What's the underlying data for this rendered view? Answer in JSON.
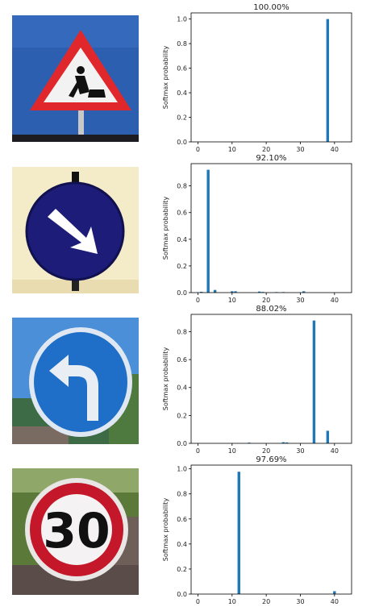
{
  "chart_data": [
    {
      "type": "bar",
      "title": "100.00%",
      "ylabel": "Softmax probability",
      "xlabel": "",
      "xlim": [
        -2,
        45
      ],
      "ylim": [
        0,
        1.05
      ],
      "xticks": [
        0,
        10,
        20,
        30,
        40
      ],
      "yticks": [
        0.0,
        0.2,
        0.4,
        0.6,
        0.8,
        1.0
      ],
      "x": [
        38
      ],
      "values": [
        1.0
      ]
    },
    {
      "type": "bar",
      "title": "92.10%",
      "ylabel": "Softmax probability",
      "xlabel": "",
      "xlim": [
        -2,
        45
      ],
      "ylim": [
        0,
        0.967
      ],
      "xticks": [
        0,
        10,
        20,
        30,
        40
      ],
      "yticks": [
        0.0,
        0.2,
        0.4,
        0.6,
        0.8
      ],
      "x": [
        1,
        3,
        5,
        10,
        11,
        18,
        19,
        23,
        25,
        31
      ],
      "values": [
        0.006,
        0.921,
        0.02,
        0.01,
        0.01,
        0.008,
        0.005,
        0.004,
        0.004,
        0.01
      ]
    },
    {
      "type": "bar",
      "title": "88.02%",
      "ylabel": "Softmax probability",
      "xlabel": "",
      "xlim": [
        -2,
        45
      ],
      "ylim": [
        0,
        0.924
      ],
      "xticks": [
        0,
        10,
        20,
        30,
        40
      ],
      "yticks": [
        0.0,
        0.2,
        0.4,
        0.6,
        0.8
      ],
      "x": [
        15,
        25,
        26,
        34,
        38
      ],
      "values": [
        0.005,
        0.008,
        0.006,
        0.88,
        0.09
      ]
    },
    {
      "type": "bar",
      "title": "97.69%",
      "ylabel": "Softmax probability",
      "xlabel": "",
      "xlim": [
        -2,
        45
      ],
      "ylim": [
        0,
        1.03
      ],
      "xticks": [
        0,
        10,
        20,
        30,
        40
      ],
      "yticks": [
        0.0,
        0.2,
        0.4,
        0.6,
        0.8,
        1.0
      ],
      "x": [
        12,
        40
      ],
      "values": [
        0.977,
        0.023
      ]
    }
  ],
  "signs": [
    {
      "name": "road-work-sign-image"
    },
    {
      "name": "keep-right-sign-image"
    },
    {
      "name": "turn-left-ahead-sign-image"
    },
    {
      "name": "speed-limit-30-sign-image",
      "text": "30"
    }
  ],
  "colors": {
    "bar": "#1f77b4",
    "axis": "#000000",
    "text": "#222222"
  }
}
